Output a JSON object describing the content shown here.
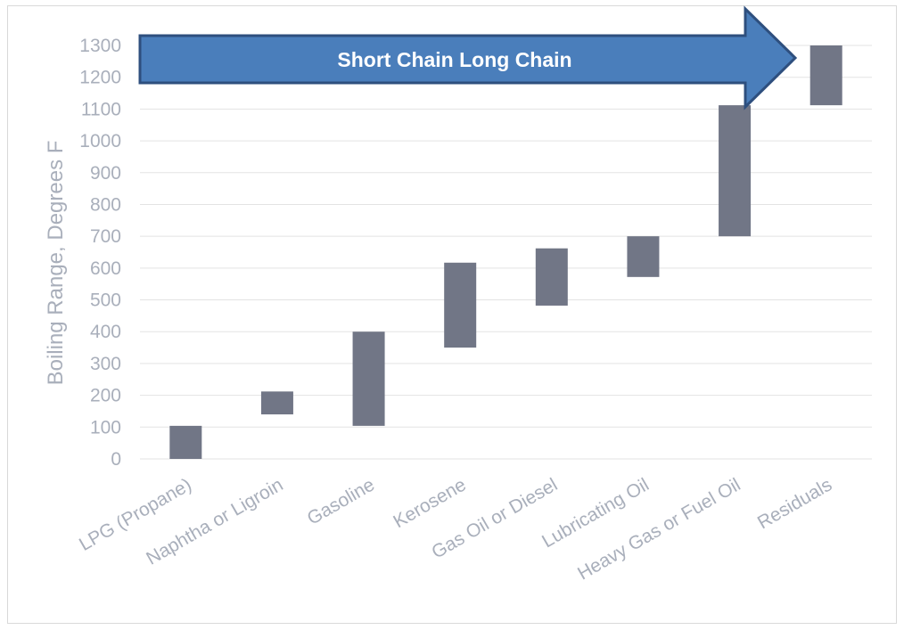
{
  "chart_data": {
    "type": "bar",
    "subtype": "floating-range",
    "ylabel": "Boiling Range, Degrees F",
    "ylim": [
      0,
      1300
    ],
    "yticks": [
      0,
      100,
      200,
      300,
      400,
      500,
      600,
      700,
      800,
      900,
      1000,
      1100,
      1200,
      1300
    ],
    "grid": true,
    "categories": [
      "LPG (Propane)",
      "Naphtha or Ligroin",
      "Gasoline",
      "Kerosene",
      "Gas Oil or Diesel",
      "Lubricating Oil",
      "Heavy Gas or Fuel Oil",
      "Residuals"
    ],
    "ranges": [
      [
        0,
        104
      ],
      [
        140,
        212
      ],
      [
        104,
        400
      ],
      [
        350,
        617
      ],
      [
        482,
        662
      ],
      [
        572,
        700
      ],
      [
        700,
        1112
      ],
      [
        1112,
        1300
      ]
    ],
    "annotation": "Short Chain Long Chain",
    "colors": {
      "bar": "#717686",
      "arrow_fill": "#4a7ebb",
      "arrow_stroke": "#2e4f7e",
      "text": "#a9afbb"
    }
  }
}
